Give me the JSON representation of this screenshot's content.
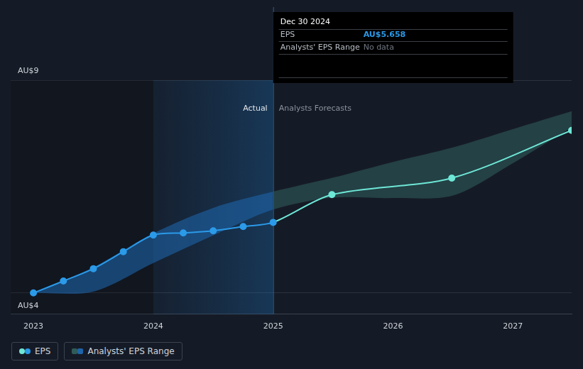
{
  "chart_data": {
    "type": "line",
    "xlim": [
      2022.81,
      2027.49
    ],
    "xticks": [
      2023,
      2024,
      2025,
      2026,
      2027
    ],
    "ylim": [
      3.5,
      9
    ],
    "yticks": [
      {
        "value": 4,
        "label": "AU$4"
      },
      {
        "value": 9,
        "label": "AU$9"
      }
    ],
    "grid": true,
    "legend": "bottom left",
    "highlight_x": [
      2024,
      2025
    ],
    "annotations": [
      {
        "text": "Actual"
      },
      {
        "text": "Analysts Forecasts"
      }
    ],
    "tooltip": {
      "title": "Dec 30 2024",
      "rows": [
        {
          "label": "EPS",
          "value": "AU$5.658"
        },
        {
          "label": "Analysts' EPS Range",
          "value": "No data"
        }
      ]
    },
    "series": [
      {
        "name": "EPS",
        "type": "line",
        "marker": "circle",
        "x": [
          2023.0,
          2023.25,
          2023.5,
          2023.75,
          2024.0,
          2024.25,
          2024.5,
          2024.75,
          2025.0,
          2025.49,
          2026.49,
          2027.49
        ],
        "values": [
          4.0,
          4.28,
          4.57,
          4.97,
          5.36,
          5.41,
          5.46,
          5.56,
          5.658,
          6.31,
          6.7,
          7.82
        ],
        "colors": [
          "#2b9ae9",
          "#2b9ae9",
          "#2b9ae9",
          "#2b9ae9",
          "#2b9ae9",
          "#2b9ae9",
          "#2b9ae9",
          "#2b9ae9",
          "#2b9ae9",
          "#6ee7d7",
          "#6ee7d7",
          "#6ee7d7"
        ]
      },
      {
        "name": "Analysts' EPS Range",
        "type": "area",
        "x": [
          2023.0,
          2023.5,
          2024.0,
          2024.5,
          2025.0,
          2025.5,
          2026.0,
          2026.5,
          2027.0,
          2027.49
        ],
        "lower": [
          4.0,
          4.03,
          4.7,
          5.35,
          5.96,
          6.24,
          6.23,
          6.29,
          7.05,
          7.89
        ],
        "upper": [
          4.0,
          4.6,
          5.4,
          6.0,
          6.38,
          6.71,
          7.08,
          7.42,
          7.85,
          8.27
        ],
        "colors": [
          "#1e64a8",
          "#1e64a8",
          "#1e64a8",
          "#1e64a8",
          "#1e64a8",
          "#2f5c5a",
          "#2f5c5a",
          "#2f5c5a",
          "#2f5c5a",
          "#2f5c5a"
        ]
      }
    ]
  }
}
